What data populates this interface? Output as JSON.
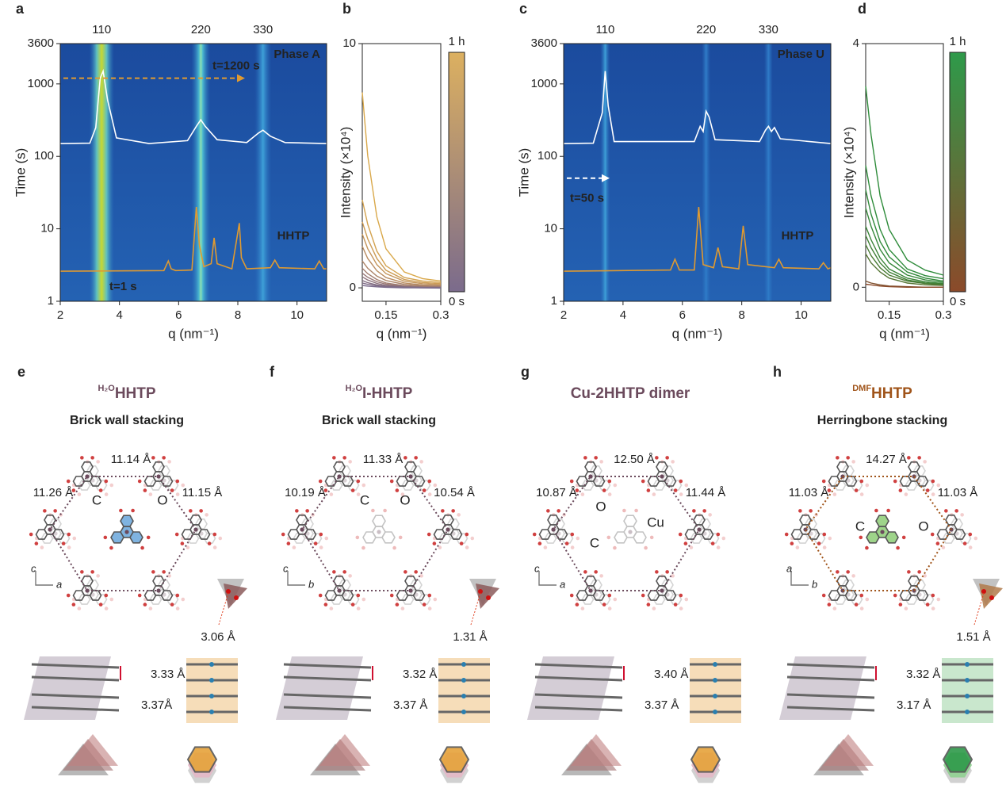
{
  "chart_data": [
    {
      "type": "heatmap",
      "panel": "a",
      "ylog": true,
      "xlabel": "q (nm⁻¹)",
      "ylabel": "Time (s)",
      "xlim": [
        2,
        11
      ],
      "xticks": [
        2,
        4,
        6,
        8,
        10
      ],
      "ylim": [
        1,
        3600
      ],
      "yticks": [
        1,
        10,
        100,
        1000,
        3600
      ],
      "peaks": [
        {
          "label": "110",
          "q": 3.4
        },
        {
          "label": "220",
          "q": 6.75
        },
        {
          "label": "330",
          "q": 8.85
        }
      ],
      "phase_label": "Phase A",
      "time_marker": {
        "text": "t=1200 s",
        "t": 1200
      },
      "curve_label": "HHTP",
      "start_label": "t=1 s",
      "series": [
        {
          "color": "#ffffff",
          "x": [
            2,
            3,
            3.2,
            3.35,
            3.45,
            3.6,
            3.9,
            5,
            6.3,
            6.6,
            6.75,
            6.9,
            7.3,
            8.3,
            8.7,
            8.85,
            9.1,
            9.6,
            11
          ],
          "values": [
            150,
            152,
            250,
            1200,
            1500,
            600,
            180,
            150,
            165,
            260,
            320,
            260,
            170,
            155,
            210,
            230,
            190,
            155,
            150
          ]
        },
        {
          "color": "#e09a30",
          "x": [
            2,
            5.5,
            5.65,
            5.75,
            5.9,
            6.45,
            6.6,
            6.7,
            6.85,
            7.1,
            7.2,
            7.3,
            7.8,
            7.98,
            8.05,
            8.12,
            8.3,
            9.1,
            9.25,
            9.4,
            10.6,
            10.75,
            10.9,
            11
          ],
          "values": [
            2.6,
            2.65,
            3.6,
            2.8,
            2.65,
            2.7,
            20,
            6,
            3,
            3.3,
            7.5,
            3.3,
            2.8,
            8,
            12,
            4,
            2.8,
            2.9,
            3.7,
            2.9,
            2.8,
            3.6,
            2.8,
            2.8
          ]
        }
      ]
    },
    {
      "type": "line",
      "panel": "b",
      "xlabel": "q (nm⁻¹)",
      "ylabel": "Intensity (×10⁴)",
      "xlim": [
        0.085,
        0.3
      ],
      "xticks": [
        0.15,
        0.3
      ],
      "ylim": [
        -0.55,
        10
      ],
      "yticks": [
        0,
        10
      ],
      "colorbar": {
        "top_label": "1 h",
        "bottom_label": "0 s",
        "colors": [
          "#dcb060",
          "#7b6b8c"
        ]
      },
      "x": [
        0.085,
        0.1,
        0.125,
        0.15,
        0.2,
        0.25,
        0.3
      ],
      "series": [
        {
          "color": "#d9a84a",
          "values": [
            8,
            5.4,
            2.9,
            1.6,
            0.65,
            0.38,
            0.28
          ]
        },
        {
          "color": "#d3a24f",
          "values": [
            3.6,
            2.6,
            1.5,
            0.9,
            0.42,
            0.28,
            0.22
          ]
        },
        {
          "color": "#cc9c55",
          "values": [
            2.7,
            2,
            1.2,
            0.72,
            0.34,
            0.22,
            0.17
          ]
        },
        {
          "color": "#c4955b",
          "values": [
            2.2,
            1.6,
            0.95,
            0.58,
            0.27,
            0.17,
            0.13
          ]
        },
        {
          "color": "#b98d62",
          "values": [
            1.7,
            1.2,
            0.7,
            0.42,
            0.2,
            0.12,
            0.09
          ]
        },
        {
          "color": "#ad8569",
          "values": [
            1.1,
            0.8,
            0.48,
            0.3,
            0.14,
            0.09,
            0.07
          ]
        },
        {
          "color": "#a27e70",
          "values": [
            0.8,
            0.58,
            0.34,
            0.2,
            0.09,
            0.05,
            0.04
          ]
        },
        {
          "color": "#977776",
          "values": [
            0.6,
            0.43,
            0.25,
            0.15,
            0.06,
            0.03,
            0.02
          ]
        },
        {
          "color": "#8d727c",
          "values": [
            0.45,
            0.32,
            0.18,
            0.1,
            0.04,
            0.02,
            0.01
          ]
        },
        {
          "color": "#846e82",
          "values": [
            0.3,
            0.21,
            0.12,
            0.07,
            0.03,
            0.01,
            0
          ]
        },
        {
          "color": "#7f6c87",
          "values": [
            0.2,
            0.14,
            0.08,
            0.04,
            0.02,
            0,
            0
          ]
        },
        {
          "color": "#7b6b8c",
          "values": [
            0.1,
            0.07,
            0.04,
            0.02,
            0,
            0,
            -0.01
          ]
        }
      ]
    },
    {
      "type": "heatmap",
      "panel": "c",
      "ylog": true,
      "xlabel": "q (nm⁻¹)",
      "ylabel": "Time (s)",
      "xlim": [
        2,
        11
      ],
      "xticks": [
        2,
        4,
        6,
        8,
        10
      ],
      "ylim": [
        1,
        3600
      ],
      "yticks": [
        1,
        10,
        100,
        1000,
        3600
      ],
      "peaks": [
        {
          "label": "110",
          "q": 3.4
        },
        {
          "label": "220",
          "q": 6.8
        },
        {
          "label": "330",
          "q": 8.9
        }
      ],
      "phase_label": "Phase U",
      "time_marker": {
        "text": "t=50 s",
        "t": 50
      },
      "curve_label": "HHTP",
      "series": [
        {
          "color": "#ffffff",
          "x": [
            2,
            3,
            3.3,
            3.4,
            3.5,
            3.7,
            6.4,
            6.6,
            6.7,
            6.8,
            6.9,
            7.1,
            8.6,
            8.8,
            8.9,
            9,
            9.1,
            9.3,
            11
          ],
          "values": [
            150,
            152,
            400,
            1500,
            500,
            160,
            160,
            260,
            220,
            420,
            350,
            170,
            160,
            230,
            260,
            220,
            250,
            175,
            150
          ]
        },
        {
          "color": "#e09a30",
          "x": [
            2,
            5.6,
            5.75,
            5.9,
            6.4,
            6.55,
            6.7,
            7.05,
            7.2,
            7.35,
            7.9,
            8.05,
            8.2,
            9.1,
            9.25,
            9.4,
            10.6,
            10.75,
            10.9,
            11
          ],
          "values": [
            2.6,
            2.7,
            3.8,
            2.7,
            2.7,
            20,
            3.2,
            2.9,
            5.5,
            3,
            2.8,
            11,
            3.2,
            2.9,
            3.8,
            2.9,
            2.8,
            3.4,
            2.8,
            2.9
          ]
        }
      ]
    },
    {
      "type": "line",
      "panel": "d",
      "xlabel": "q (nm⁻¹)",
      "ylabel": "Intensity (×10⁴)",
      "xlim": [
        0.085,
        0.3
      ],
      "xticks": [
        0.15,
        0.3
      ],
      "ylim": [
        -0.23,
        4
      ],
      "yticks": [
        0,
        4
      ],
      "colorbar": {
        "top_label": "1 h",
        "bottom_label": "0 s",
        "colors": [
          "#2e9a4a",
          "#8b4a2a"
        ]
      },
      "x": [
        0.085,
        0.1,
        0.125,
        0.15,
        0.2,
        0.25,
        0.3
      ],
      "series": [
        {
          "color": "#2e8b3a",
          "values": [
            3.3,
            2.5,
            1.5,
            0.95,
            0.45,
            0.28,
            0.2
          ]
        },
        {
          "color": "#2e8b3a",
          "values": [
            2,
            1.5,
            0.95,
            0.62,
            0.3,
            0.19,
            0.14
          ]
        },
        {
          "color": "#31893a",
          "values": [
            1.6,
            1.2,
            0.75,
            0.5,
            0.25,
            0.15,
            0.1
          ]
        },
        {
          "color": "#358739",
          "values": [
            1.3,
            1,
            0.62,
            0.4,
            0.2,
            0.12,
            0.08
          ]
        },
        {
          "color": "#3a8438",
          "values": [
            1,
            0.78,
            0.48,
            0.3,
            0.15,
            0.09,
            0.06
          ]
        },
        {
          "color": "#418037",
          "values": [
            0.85,
            0.65,
            0.4,
            0.25,
            0.12,
            0.07,
            0.05
          ]
        },
        {
          "color": "#4a7c35",
          "values": [
            0.7,
            0.52,
            0.32,
            0.2,
            0.1,
            0.06,
            0.04
          ]
        },
        {
          "color": "#557534",
          "values": [
            0.55,
            0.4,
            0.25,
            0.15,
            0.07,
            0.04,
            0.03
          ]
        },
        {
          "color": "#7d4f2c",
          "values": [
            0.1,
            0.07,
            0.04,
            0.02,
            0.01,
            0,
            0
          ]
        },
        {
          "color": "#8b4a2a",
          "values": [
            0.05,
            0.04,
            0.02,
            0.01,
            0,
            0,
            0
          ]
        }
      ]
    }
  ],
  "panels": [
    {
      "letter": "e",
      "title_sup": "H₂O",
      "title": "HHTP",
      "color": "#6b4a5c",
      "subtitle": "Brick wall stacking",
      "distances": [
        "11.14 Å",
        "11.26 Å",
        "11.15 Å"
      ],
      "atoms": [
        "C",
        "O"
      ],
      "axes": [
        "c",
        "a"
      ],
      "offset": "3.06 Å",
      "stacking": [
        "3.33 Å",
        "3.37Å"
      ]
    },
    {
      "letter": "f",
      "title_sup": "H₂O",
      "title": "I-HHTP",
      "color": "#6b4a5c",
      "subtitle": "Brick wall stacking",
      "distances": [
        "11.33 Å",
        "10.19 Å",
        "10.54 Å"
      ],
      "atoms": [
        "C",
        "O"
      ],
      "axes": [
        "c",
        "b"
      ],
      "offset": "1.31 Å",
      "stacking": [
        "3.32 Å",
        "3.37 Å"
      ]
    },
    {
      "letter": "g",
      "title": "Cu-2HHTP dimer",
      "color": "#6b4a5c",
      "distances": [
        "12.50 Å",
        "10.87 Å",
        "11.44 Å"
      ],
      "atoms": [
        "O",
        "C",
        "Cu"
      ],
      "axes": [
        "c",
        "a"
      ],
      "stacking": [
        "3.40 Å",
        "3.37 Å"
      ]
    },
    {
      "letter": "h",
      "title_sup": "DMF",
      "title": "HHTP",
      "color": "#a0541a",
      "subtitle": "Herringbone stacking",
      "distances": [
        "14.27 Å",
        "11.03 Å",
        "11.03 Å"
      ],
      "atoms": [
        "C",
        "O"
      ],
      "axes": [
        "a",
        "b"
      ],
      "offset": "1.51 Å",
      "stacking": [
        "3.32 Å",
        "3.17 Å"
      ]
    }
  ]
}
